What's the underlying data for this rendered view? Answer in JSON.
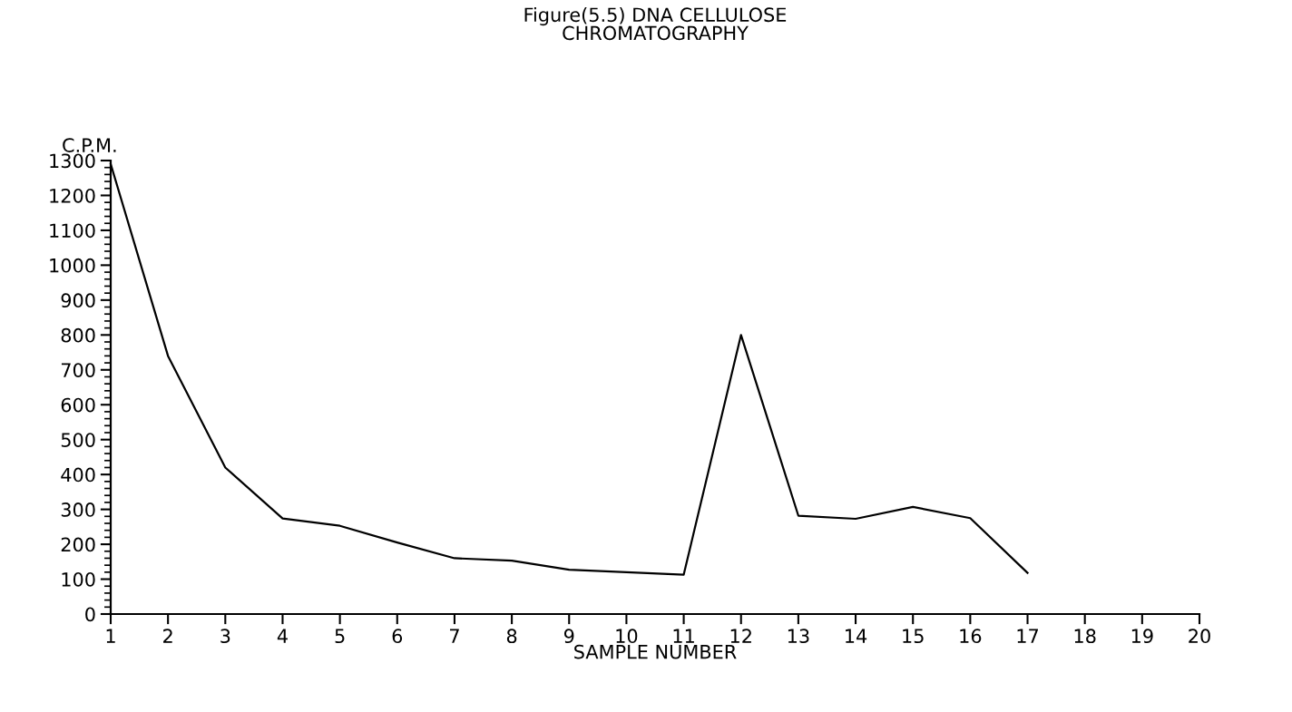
{
  "chart_data": {
    "type": "line",
    "title": "Figure(5.5) DNA CELLULOSE\nCHROMATOGRAPHY",
    "xlabel": "SAMPLE NUMBER",
    "ylabel": "C.P.M.",
    "x": [
      1,
      2,
      3,
      4,
      5,
      6,
      7,
      8,
      9,
      10,
      11,
      12,
      13,
      14,
      15,
      16,
      17
    ],
    "series": [
      {
        "color": "#000000",
        "values": [
          1290,
          740,
          420,
          274,
          253,
          205,
          160,
          153,
          127,
          120,
          113,
          800,
          282,
          273,
          307,
          275,
          118
        ]
      }
    ],
    "xlim": [
      1,
      20
    ],
    "xticks": [
      1,
      2,
      3,
      4,
      5,
      6,
      7,
      8,
      9,
      10,
      11,
      12,
      13,
      14,
      15,
      16,
      17,
      18,
      19,
      20
    ],
    "ylim": [
      0,
      1300
    ],
    "yticks": [
      0,
      100,
      200,
      300,
      400,
      500,
      600,
      700,
      800,
      900,
      1000,
      1100,
      1200,
      1300
    ],
    "grid": false,
    "legend": false,
    "marker": "none",
    "line_style": "solid"
  }
}
